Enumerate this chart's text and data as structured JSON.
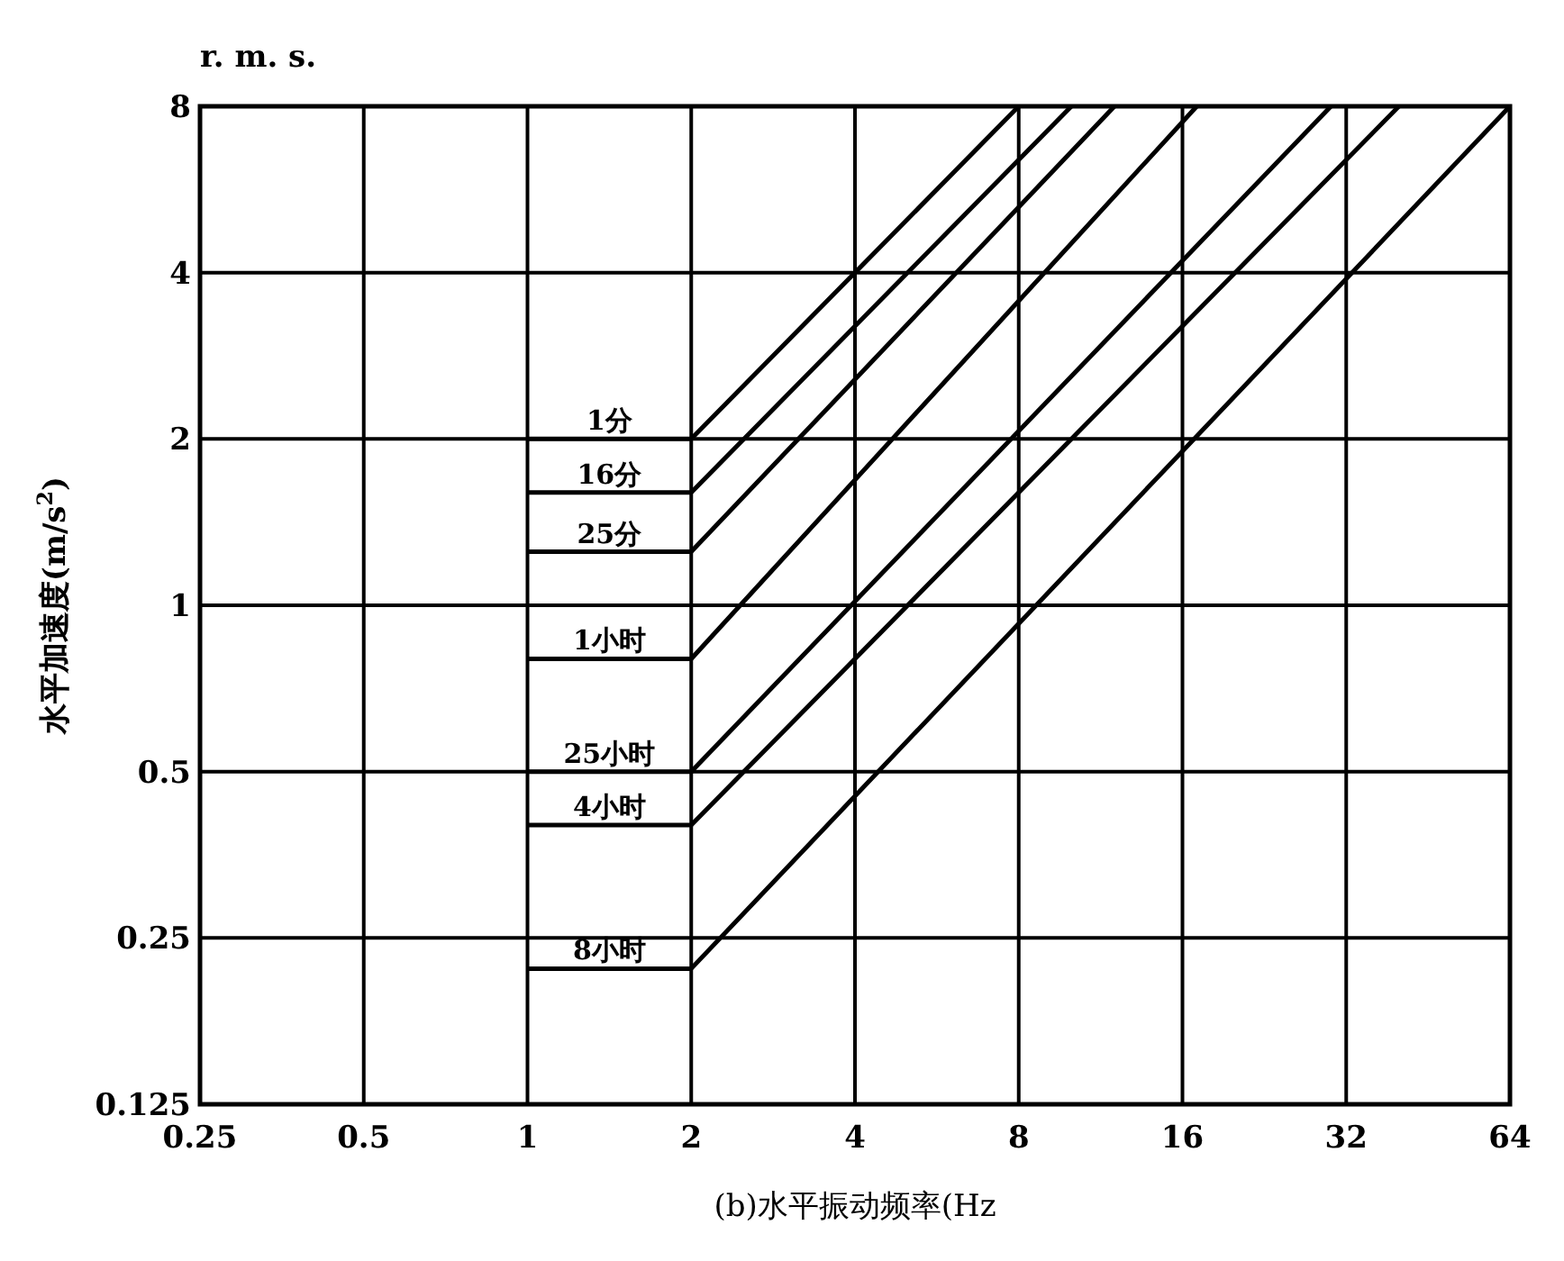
{
  "chart_data": {
    "type": "line",
    "xlabel": "(b)水平振动频率(Hz",
    "ylabel": "水平加速度(m/s$^{2}$)",
    "annotations": [
      "r. m. s."
    ],
    "xlim": [
      0.25,
      64
    ],
    "ylim": [
      0.125,
      8
    ],
    "xticks": [
      0.25,
      0.5,
      1,
      2,
      4,
      8,
      16,
      32,
      64
    ],
    "yticks": [
      0.125,
      0.25,
      0.5,
      1,
      2,
      4,
      8
    ],
    "log": "xy",
    "grid": true,
    "marker": "none",
    "line_style": "solid",
    "series": [
      {
        "name": "1分",
        "color": "#000000",
        "x": [
          1,
          2,
          8
        ],
        "values": [
          2,
          2,
          8
        ]
      },
      {
        "name": "16分",
        "color": "#000000",
        "x": [
          1,
          2,
          10
        ],
        "values": [
          1.6,
          1.6,
          8
        ]
      },
      {
        "name": "25分",
        "color": "#000000",
        "x": [
          1,
          2,
          12
        ],
        "values": [
          1.25,
          1.25,
          8
        ]
      },
      {
        "name": "1小时",
        "color": "#000000",
        "x": [
          1,
          2,
          17
        ],
        "values": [
          0.8,
          0.8,
          8
        ]
      },
      {
        "name": "25小时",
        "color": "#000000",
        "x": [
          1,
          2,
          30
        ],
        "values": [
          0.5,
          0.5,
          8
        ]
      },
      {
        "name": "4小时",
        "color": "#000000",
        "x": [
          1,
          2,
          40
        ],
        "values": [
          0.4,
          0.4,
          8
        ]
      },
      {
        "name": "8小时",
        "color": "#000000",
        "x": [
          1,
          2,
          64
        ],
        "values": [
          0.22,
          0.22,
          8
        ]
      }
    ]
  }
}
